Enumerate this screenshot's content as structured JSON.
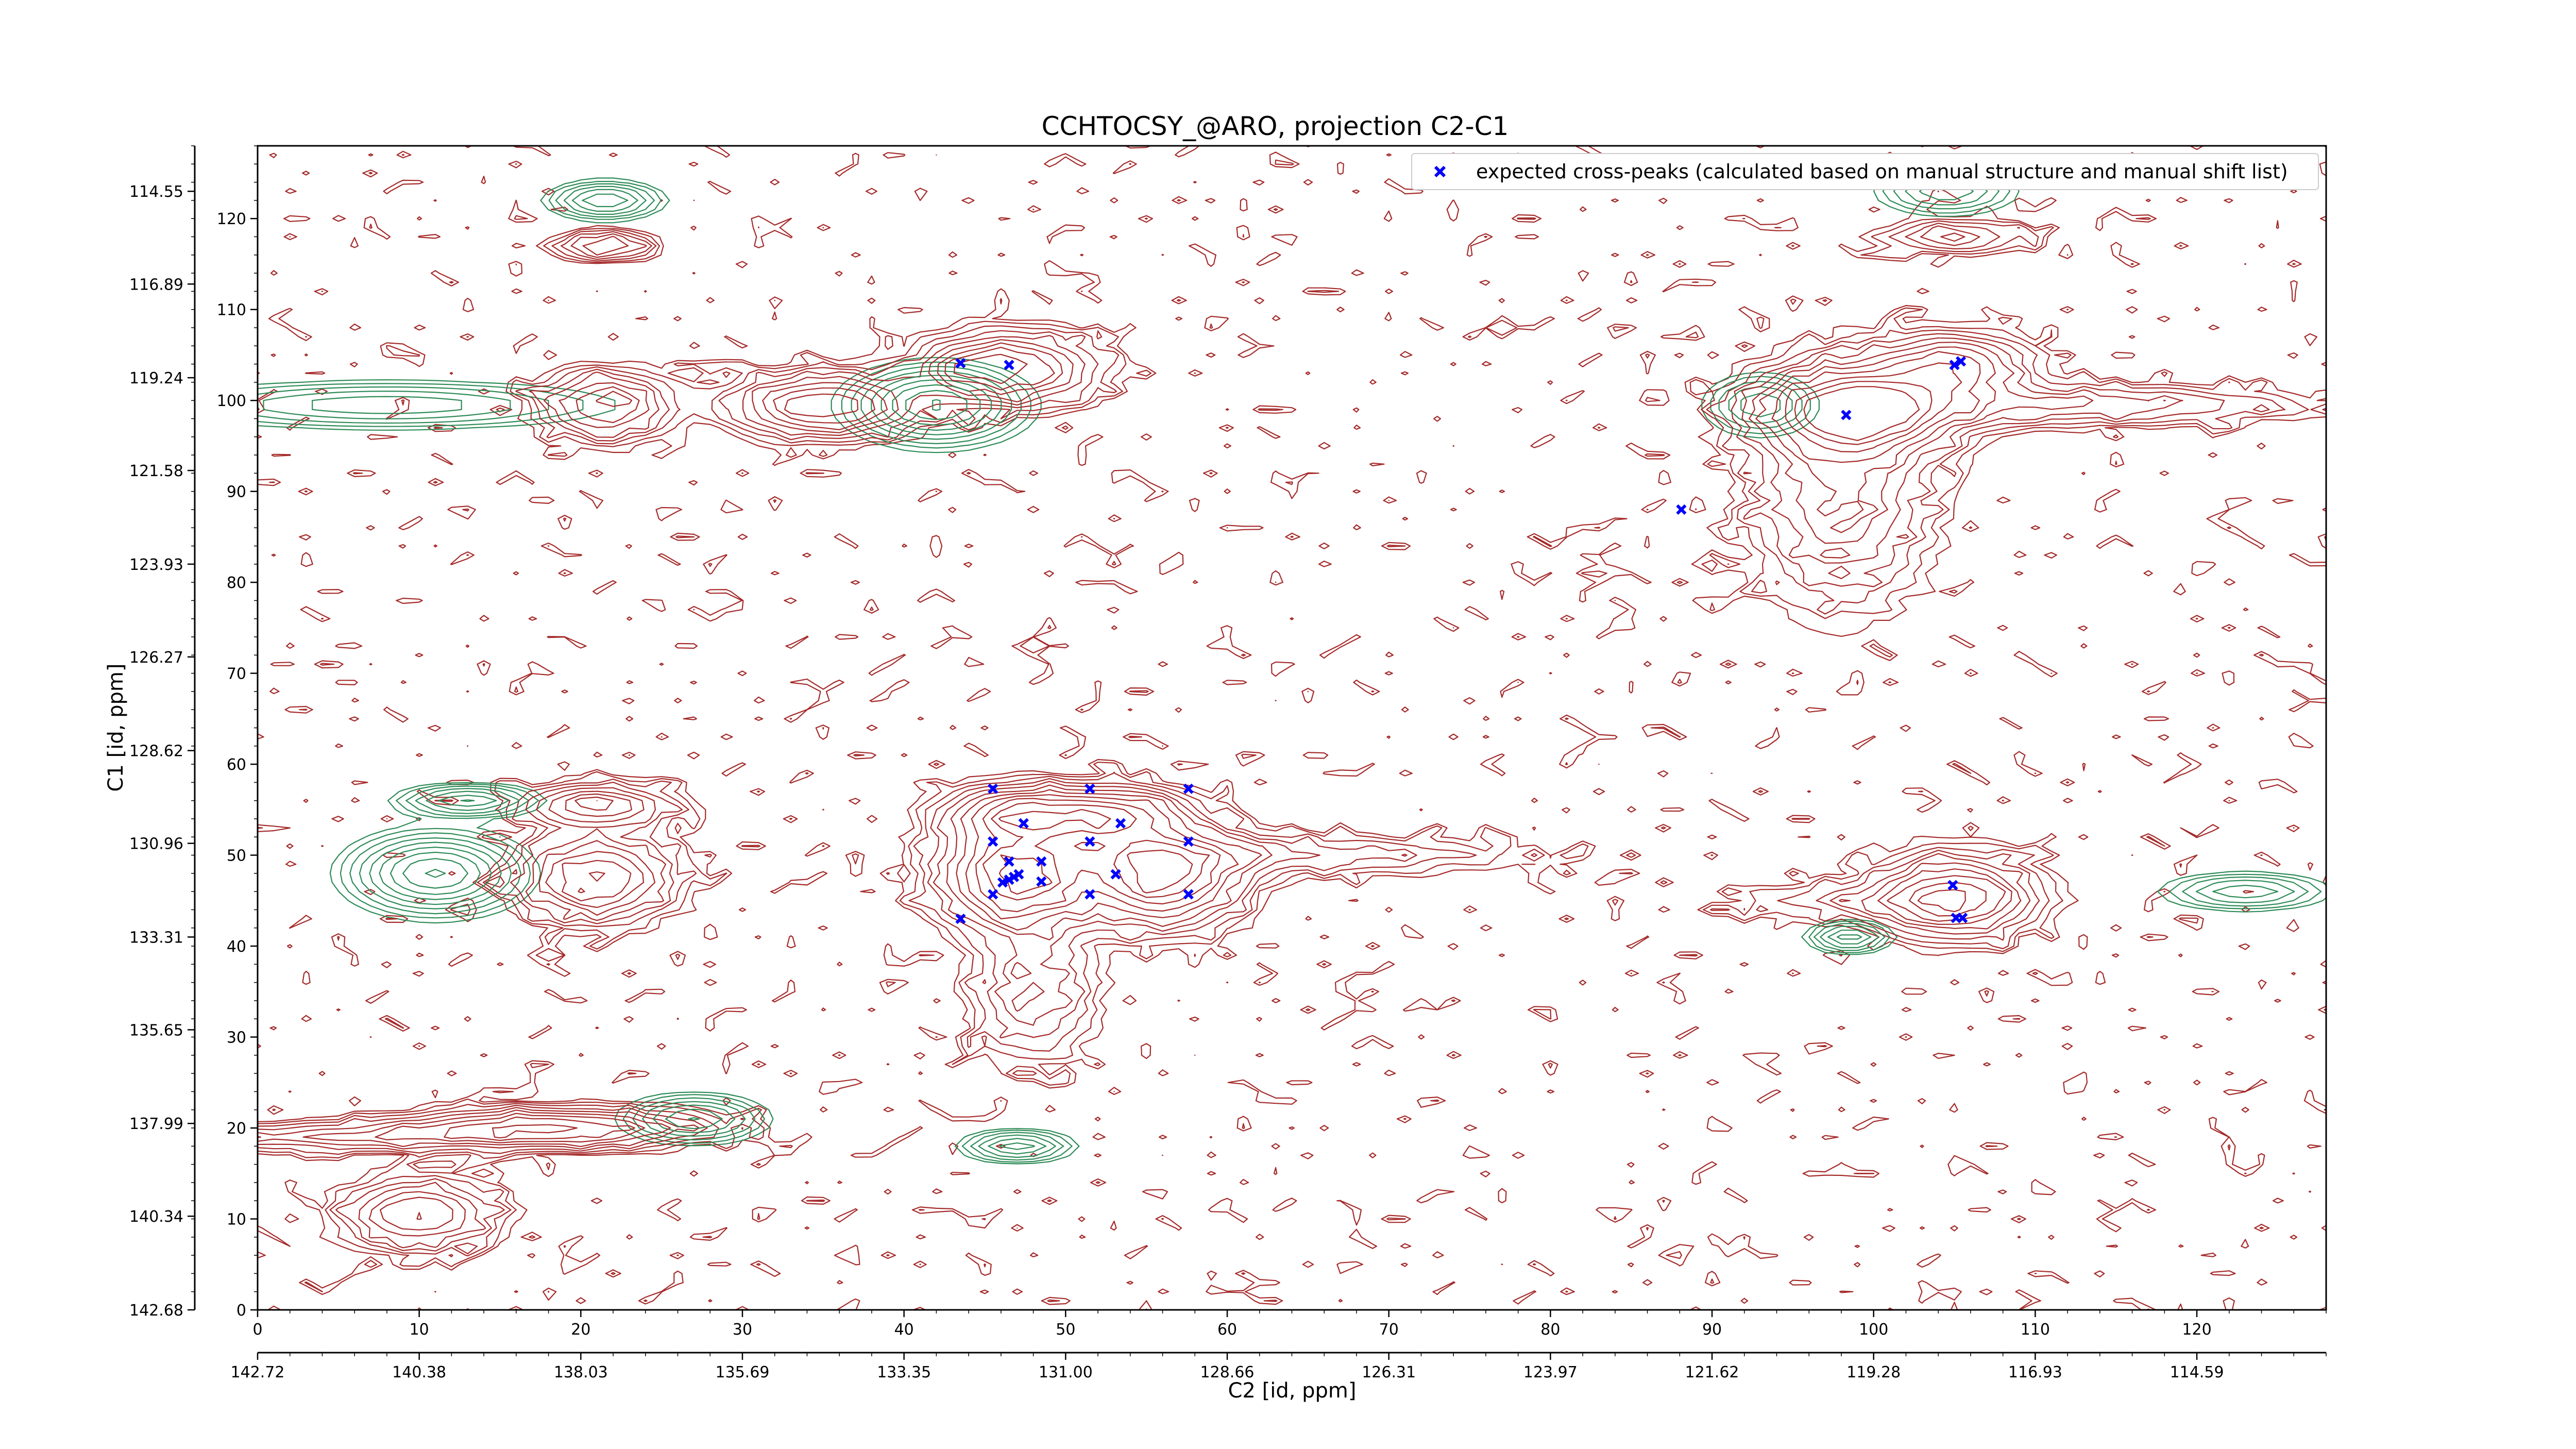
{
  "chart_data": {
    "type": "contour",
    "title": "CCHTOCSY_@ARO, projection C2-C1",
    "xlabel": "C2 [id, ppm]",
    "ylabel": "C1 [id, ppm]",
    "xlim": [
      0,
      128
    ],
    "ylim": [
      0,
      128
    ],
    "x_index_ticks": [
      0,
      10,
      20,
      30,
      40,
      50,
      60,
      70,
      80,
      90,
      100,
      110,
      120
    ],
    "y_index_ticks": [
      0,
      10,
      20,
      30,
      40,
      50,
      60,
      70,
      80,
      90,
      100,
      110,
      120
    ],
    "x_ppm_ticks": [
      {
        "index": 0,
        "label": "142.72"
      },
      {
        "index": 10,
        "label": "140.38"
      },
      {
        "index": 20,
        "label": "138.03"
      },
      {
        "index": 30,
        "label": "135.69"
      },
      {
        "index": 40,
        "label": "133.35"
      },
      {
        "index": 50,
        "label": "131.00"
      },
      {
        "index": 60,
        "label": "128.66"
      },
      {
        "index": 70,
        "label": "126.31"
      },
      {
        "index": 80,
        "label": "123.97"
      },
      {
        "index": 90,
        "label": "121.62"
      },
      {
        "index": 100,
        "label": "119.28"
      },
      {
        "index": 110,
        "label": "116.93"
      },
      {
        "index": 120,
        "label": "114.59"
      }
    ],
    "y_ppm_ticks": [
      {
        "index": 0,
        "label": "142.68"
      },
      {
        "index": 10.3,
        "label": "140.34"
      },
      {
        "index": 20.5,
        "label": "137.99"
      },
      {
        "index": 30.8,
        "label": "135.65"
      },
      {
        "index": 41,
        "label": "133.31"
      },
      {
        "index": 51.3,
        "label": "130.96"
      },
      {
        "index": 61.5,
        "label": "128.62"
      },
      {
        "index": 71.8,
        "label": "126.27"
      },
      {
        "index": 82,
        "label": "123.93"
      },
      {
        "index": 92.3,
        "label": "121.58"
      },
      {
        "index": 102.5,
        "label": "119.24"
      },
      {
        "index": 112.8,
        "label": "116.89"
      },
      {
        "index": 123,
        "label": "114.55"
      }
    ],
    "legend": {
      "placement": "top-right",
      "entries": [
        {
          "label": "expected cross-peaks (calculated based on manual structure and manual shift list)",
          "marker": "x",
          "color": "#0000ff"
        }
      ]
    },
    "contour_colors": {
      "positive": "#a52a2a",
      "negative": "#2e8b57"
    },
    "marker_color": "#0000ff",
    "peaks": [
      {
        "x": 43.5,
        "y": 103.5,
        "sx": 1.2,
        "sy": 1.0,
        "a": 1.2,
        "sign": "pos"
      },
      {
        "x": 46.5,
        "y": 103.5,
        "sx": 3.5,
        "sy": 2.6,
        "a": 3.0,
        "sign": "pos"
      },
      {
        "x": 21.5,
        "y": 99.5,
        "sx": 2.6,
        "sy": 2.4,
        "a": 2.5,
        "sign": "pos"
      },
      {
        "x": 35,
        "y": 99.5,
        "sx": 3.5,
        "sy": 2.2,
        "a": 3.5,
        "sign": "pos"
      },
      {
        "x": 42,
        "y": 99.5,
        "sx": 3.0,
        "sy": 2.4,
        "a": 3.0,
        "sign": "neg"
      },
      {
        "x": 8,
        "y": 99.5,
        "sx": 8.0,
        "sy": 1.5,
        "a": 1.5,
        "sign": "neg"
      },
      {
        "x": 21.5,
        "y": 122,
        "sx": 2.0,
        "sy": 1.2,
        "a": 2.0,
        "sign": "neg"
      },
      {
        "x": 21.5,
        "y": 117,
        "sx": 2.0,
        "sy": 1.0,
        "a": 2.0,
        "sign": "pos"
      },
      {
        "x": 99,
        "y": 99,
        "sx": 4.0,
        "sy": 3.0,
        "a": 4.0,
        "sign": "pos"
      },
      {
        "x": 98,
        "y": 90,
        "sx": 3.5,
        "sy": 8.0,
        "a": 2.0,
        "sign": "pos"
      },
      {
        "x": 105,
        "y": 104,
        "sx": 3.0,
        "sy": 2.2,
        "a": 2.5,
        "sign": "pos"
      },
      {
        "x": 113,
        "y": 99.5,
        "sx": 9.0,
        "sy": 1.5,
        "a": 1.5,
        "sign": "pos"
      },
      {
        "x": 93,
        "y": 99.5,
        "sx": 2.0,
        "sy": 2.0,
        "a": 1.5,
        "sign": "neg"
      },
      {
        "x": 105,
        "y": 118,
        "sx": 3.0,
        "sy": 1.2,
        "a": 1.5,
        "sign": "pos"
      },
      {
        "x": 104.5,
        "y": 123,
        "sx": 2.5,
        "sy": 1.5,
        "a": 1.5,
        "sign": "neg"
      },
      {
        "x": 47,
        "y": 47.5,
        "sx": 3.0,
        "sy": 3.5,
        "a": 4.0,
        "sign": "pos"
      },
      {
        "x": 56,
        "y": 47.5,
        "sx": 3.0,
        "sy": 3.5,
        "a": 4.0,
        "sign": "pos"
      },
      {
        "x": 47,
        "y": 54.5,
        "sx": 3.0,
        "sy": 2.0,
        "a": 3.0,
        "sign": "pos"
      },
      {
        "x": 53,
        "y": 54.5,
        "sx": 3.0,
        "sy": 2.0,
        "a": 3.0,
        "sign": "pos"
      },
      {
        "x": 63,
        "y": 50,
        "sx": 10.0,
        "sy": 1.5,
        "a": 1.2,
        "sign": "pos"
      },
      {
        "x": 48,
        "y": 35,
        "sx": 2.5,
        "sy": 5.0,
        "a": 1.5,
        "sign": "pos"
      },
      {
        "x": 21,
        "y": 47.5,
        "sx": 3.0,
        "sy": 3.0,
        "a": 3.0,
        "sign": "pos"
      },
      {
        "x": 21,
        "y": 55.5,
        "sx": 3.0,
        "sy": 1.5,
        "a": 2.5,
        "sign": "pos"
      },
      {
        "x": 11,
        "y": 48,
        "sx": 3.0,
        "sy": 2.5,
        "a": 3.0,
        "sign": "neg"
      },
      {
        "x": 13,
        "y": 56,
        "sx": 2.5,
        "sy": 1.0,
        "a": 2.0,
        "sign": "neg"
      },
      {
        "x": 105,
        "y": 45.5,
        "sx": 3.0,
        "sy": 3.0,
        "a": 3.0,
        "sign": "pos"
      },
      {
        "x": 100,
        "y": 45,
        "sx": 6.0,
        "sy": 1.5,
        "a": 1.0,
        "sign": "pos"
      },
      {
        "x": 98.5,
        "y": 41,
        "sx": 1.5,
        "sy": 1.0,
        "a": 1.8,
        "sign": "neg"
      },
      {
        "x": 123,
        "y": 46,
        "sx": 3.0,
        "sy": 1.2,
        "a": 1.5,
        "sign": "neg"
      },
      {
        "x": 10,
        "y": 10.5,
        "sx": 3.0,
        "sy": 2.5,
        "a": 2.5,
        "sign": "pos"
      },
      {
        "x": 18,
        "y": 20,
        "sx": 6.0,
        "sy": 1.4,
        "a": 3.0,
        "sign": "pos"
      },
      {
        "x": 5,
        "y": 19,
        "sx": 7.0,
        "sy": 1.0,
        "a": 1.5,
        "sign": "pos"
      },
      {
        "x": 27,
        "y": 21,
        "sx": 2.5,
        "sy": 1.5,
        "a": 2.0,
        "sign": "neg"
      },
      {
        "x": 47,
        "y": 18,
        "sx": 2.0,
        "sy": 1.0,
        "a": 1.8,
        "sign": "neg"
      }
    ],
    "expected_cross_peaks": [
      {
        "x": 43.5,
        "y": 104.1
      },
      {
        "x": 46.5,
        "y": 103.9
      },
      {
        "x": 98.3,
        "y": 98.4
      },
      {
        "x": 88.1,
        "y": 88.0
      },
      {
        "x": 105.0,
        "y": 103.9
      },
      {
        "x": 105.4,
        "y": 104.3
      },
      {
        "x": 45.5,
        "y": 57.3
      },
      {
        "x": 51.5,
        "y": 57.3
      },
      {
        "x": 57.6,
        "y": 57.3
      },
      {
        "x": 47.4,
        "y": 53.5
      },
      {
        "x": 53.4,
        "y": 53.5
      },
      {
        "x": 45.5,
        "y": 51.5
      },
      {
        "x": 51.5,
        "y": 51.5
      },
      {
        "x": 57.6,
        "y": 51.5
      },
      {
        "x": 46.5,
        "y": 49.3
      },
      {
        "x": 48.5,
        "y": 49.3
      },
      {
        "x": 47.1,
        "y": 47.9
      },
      {
        "x": 46.8,
        "y": 47.6
      },
      {
        "x": 46.5,
        "y": 47.3
      },
      {
        "x": 46.1,
        "y": 47.0
      },
      {
        "x": 48.5,
        "y": 47.1
      },
      {
        "x": 53.1,
        "y": 47.9
      },
      {
        "x": 45.5,
        "y": 45.7
      },
      {
        "x": 51.5,
        "y": 45.7
      },
      {
        "x": 57.6,
        "y": 45.7
      },
      {
        "x": 43.5,
        "y": 43.0
      },
      {
        "x": 104.9,
        "y": 46.7
      },
      {
        "x": 105.1,
        "y": 43.1
      },
      {
        "x": 105.5,
        "y": 43.1
      }
    ]
  }
}
